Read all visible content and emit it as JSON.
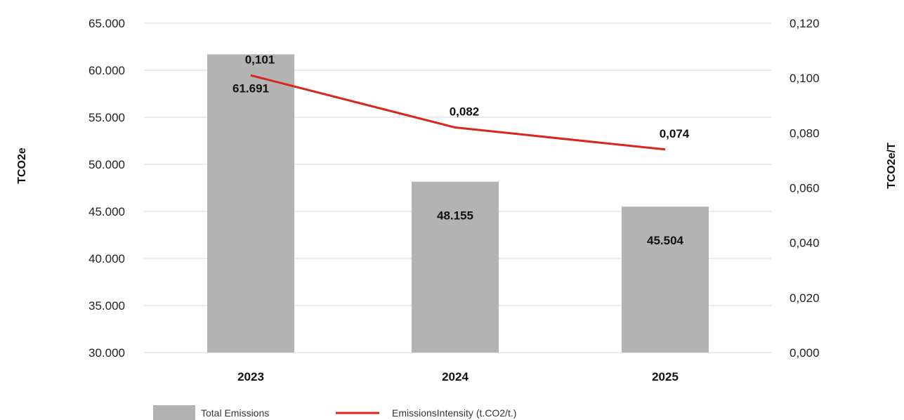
{
  "chart_data": {
    "type": "bar",
    "categories": [
      "2023",
      "2024",
      "2025"
    ],
    "series": [
      {
        "name": "Total Emissions",
        "type": "bar",
        "axis": "left",
        "values": [
          61691,
          48155,
          45504
        ],
        "labels": [
          "61.691",
          "48.155",
          "45.504"
        ]
      },
      {
        "name": "EmissionsIntensity (t.CO2/t.)",
        "type": "line",
        "axis": "right",
        "values": [
          0.101,
          0.082,
          0.074
        ],
        "labels": [
          "0,101",
          "0,082",
          "0,074"
        ]
      }
    ],
    "left_axis": {
      "label": "TCO2e",
      "ylim": [
        30000,
        65000
      ],
      "ticks": [
        30000,
        35000,
        40000,
        45000,
        50000,
        55000,
        60000,
        65000
      ],
      "tick_labels": [
        "30.000",
        "35.000",
        "40.000",
        "45.000",
        "50.000",
        "55.000",
        "60.000",
        "65.000"
      ]
    },
    "right_axis": {
      "label": "TCO2e/T",
      "ylim": [
        0,
        0.12
      ],
      "ticks": [
        0,
        0.02,
        0.04,
        0.06,
        0.08,
        0.1,
        0.12
      ],
      "tick_labels": [
        "0,000",
        "0,020",
        "0,040",
        "0,060",
        "0,080",
        "0,100",
        "0,120"
      ]
    },
    "grid": true,
    "legend": "bottom",
    "colors": {
      "bar": "#b3b3b3",
      "line": "#d9251d",
      "grid": "#d9d9d9"
    }
  }
}
